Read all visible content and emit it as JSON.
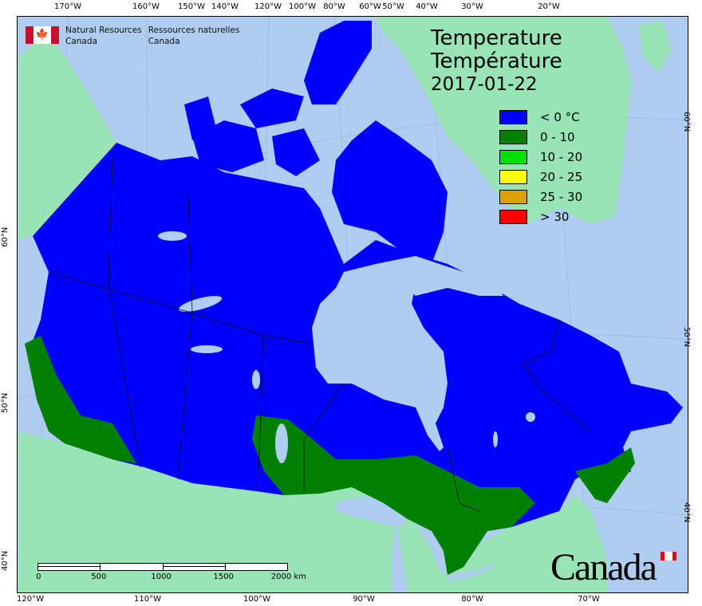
{
  "map": {
    "title_en": "Temperature",
    "title_fr": "Température",
    "date": "2017-01-22",
    "agency": {
      "en_line1": "Natural Resources",
      "en_line2": "Canada",
      "fr_line1": "Ressources naturelles",
      "fr_line2": "Canada"
    },
    "wordmark": "Canada",
    "legend": [
      {
        "label": "< 0 °C",
        "color": "#0000ff"
      },
      {
        "label": "0 - 10",
        "color": "#008000"
      },
      {
        "label": "10 - 20",
        "color": "#00e000"
      },
      {
        "label": "20 - 25",
        "color": "#ffff00"
      },
      {
        "label": "25 - 30",
        "color": "#e0a000"
      },
      {
        "label": "> 30",
        "color": "#ff0000"
      }
    ],
    "scale_bar": {
      "labels": [
        "0",
        "500",
        "1000",
        "1500",
        "2000  km"
      ]
    },
    "top_ticks": [
      "170°W",
      "160°W",
      "150°W",
      "140°W",
      "120°W",
      "100°W",
      "80°W",
      "60°W",
      "50°W",
      "40°W",
      "30°W",
      "20°W"
    ],
    "bottom_ticks": [
      "120°W",
      "110°W",
      "100°W",
      "90°W",
      "80°W",
      "70°W"
    ],
    "left_ticks": [
      "60°N",
      "50°N",
      "40°N"
    ],
    "right_ticks": [
      "60°N",
      "50°N",
      "40°N"
    ],
    "colors": {
      "ocean": "#aecdf0",
      "land": "#98e4b4",
      "below_zero": "#0000ff",
      "zero_ten": "#008000"
    }
  }
}
